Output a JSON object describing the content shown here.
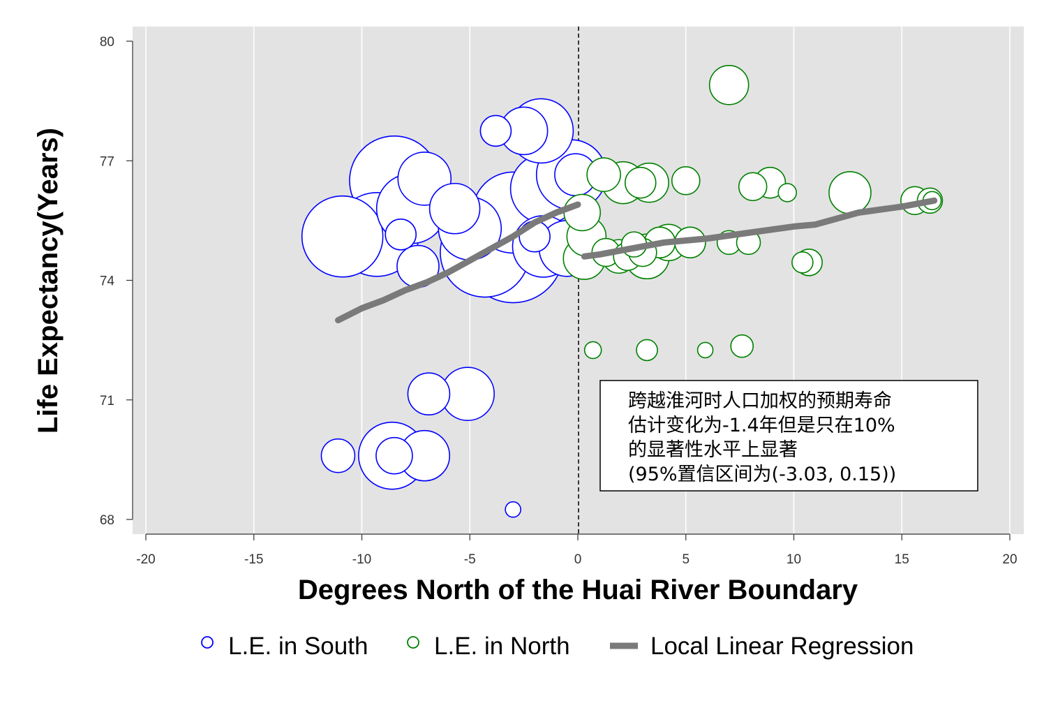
{
  "chart_data": {
    "type": "scatter",
    "xlabel": "Degrees North of the Huai River Boundary",
    "ylabel": "Life Expectancy(Years)",
    "xlim": [
      -20,
      20
    ],
    "ylim": [
      67.6,
      80.35
    ],
    "x_ticks": [
      -20,
      -15,
      -10,
      -5,
      0,
      5,
      10,
      15,
      20
    ],
    "x_tick_labels": [
      "-20",
      "-15",
      "-10",
      "-5",
      "0",
      "5",
      "10",
      "15",
      "20"
    ],
    "y_ticks": [
      68,
      71,
      74,
      77,
      80
    ],
    "y_tick_labels": [
      "68",
      "71",
      "74",
      "77",
      "80"
    ],
    "grid": "vertical",
    "plot_background": "#e3e3e3",
    "cutoff_x": 0,
    "series": [
      {
        "name": "L.E. in South",
        "marker": "hollow-circle",
        "color": "#0000ff",
        "points": [
          {
            "x": -10.9,
            "y": 75.1,
            "size": 58
          },
          {
            "x": -9.3,
            "y": 75.15,
            "size": 60
          },
          {
            "x": -8.5,
            "y": 76.5,
            "size": 64
          },
          {
            "x": -8.2,
            "y": 75.15,
            "size": 22
          },
          {
            "x": -7.7,
            "y": 75.8,
            "size": 50
          },
          {
            "x": -7.1,
            "y": 76.55,
            "size": 38
          },
          {
            "x": -7.4,
            "y": 74.35,
            "size": 30
          },
          {
            "x": -5.7,
            "y": 75.8,
            "size": 36
          },
          {
            "x": -5.0,
            "y": 75.3,
            "size": 45
          },
          {
            "x": -4.3,
            "y": 74.7,
            "size": 64
          },
          {
            "x": -3.8,
            "y": 77.75,
            "size": 22
          },
          {
            "x": -3.0,
            "y": 75.7,
            "size": 58
          },
          {
            "x": -3.0,
            "y": 74.7,
            "size": 72
          },
          {
            "x": -2.5,
            "y": 77.75,
            "size": 34
          },
          {
            "x": -1.7,
            "y": 77.75,
            "size": 46
          },
          {
            "x": -2.0,
            "y": 75.1,
            "size": 22
          },
          {
            "x": -1.6,
            "y": 74.85,
            "size": 44
          },
          {
            "x": -1.5,
            "y": 76.3,
            "size": 50
          },
          {
            "x": -0.5,
            "y": 74.8,
            "size": 40
          },
          {
            "x": -0.3,
            "y": 76.65,
            "size": 50
          },
          {
            "x": -0.1,
            "y": 76.65,
            "size": 30
          },
          {
            "x": -6.9,
            "y": 71.15,
            "size": 30
          },
          {
            "x": -5.1,
            "y": 71.15,
            "size": 38
          },
          {
            "x": -11.1,
            "y": 69.6,
            "size": 24
          },
          {
            "x": -8.6,
            "y": 69.6,
            "size": 48
          },
          {
            "x": -8.5,
            "y": 69.6,
            "size": 26
          },
          {
            "x": -7.1,
            "y": 69.6,
            "size": 36
          },
          {
            "x": -3.0,
            "y": 68.25,
            "size": 11
          }
        ]
      },
      {
        "name": "L.E. in North",
        "marker": "hollow-circle",
        "color": "#008000",
        "points": [
          {
            "x": 7.0,
            "y": 78.9,
            "size": 28
          },
          {
            "x": 1.2,
            "y": 76.65,
            "size": 24
          },
          {
            "x": 2.1,
            "y": 76.45,
            "size": 30
          },
          {
            "x": 2.9,
            "y": 76.45,
            "size": 22
          },
          {
            "x": 3.3,
            "y": 76.45,
            "size": 28
          },
          {
            "x": 5.0,
            "y": 76.5,
            "size": 20
          },
          {
            "x": 8.1,
            "y": 76.35,
            "size": 20
          },
          {
            "x": 8.9,
            "y": 76.45,
            "size": 22
          },
          {
            "x": 9.7,
            "y": 76.2,
            "size": 13
          },
          {
            "x": 12.6,
            "y": 76.2,
            "size": 30
          },
          {
            "x": 15.6,
            "y": 76.0,
            "size": 20
          },
          {
            "x": 16.3,
            "y": 76.0,
            "size": 18
          },
          {
            "x": 16.4,
            "y": 76.0,
            "size": 13
          },
          {
            "x": 0.2,
            "y": 75.7,
            "size": 26
          },
          {
            "x": 0.4,
            "y": 75.1,
            "size": 28
          },
          {
            "x": 0.3,
            "y": 74.55,
            "size": 30
          },
          {
            "x": 1.3,
            "y": 74.7,
            "size": 20
          },
          {
            "x": 1.9,
            "y": 74.6,
            "size": 24
          },
          {
            "x": 2.3,
            "y": 74.6,
            "size": 20
          },
          {
            "x": 2.6,
            "y": 74.9,
            "size": 18
          },
          {
            "x": 3.0,
            "y": 74.7,
            "size": 20
          },
          {
            "x": 3.2,
            "y": 74.6,
            "size": 32
          },
          {
            "x": 3.8,
            "y": 74.95,
            "size": 22
          },
          {
            "x": 4.2,
            "y": 74.95,
            "size": 26
          },
          {
            "x": 5.2,
            "y": 74.95,
            "size": 22
          },
          {
            "x": 7.0,
            "y": 74.95,
            "size": 17
          },
          {
            "x": 7.9,
            "y": 74.95,
            "size": 17
          },
          {
            "x": 10.4,
            "y": 74.45,
            "size": 15
          },
          {
            "x": 10.7,
            "y": 74.45,
            "size": 19
          },
          {
            "x": 0.7,
            "y": 72.25,
            "size": 12
          },
          {
            "x": 3.2,
            "y": 72.25,
            "size": 15
          },
          {
            "x": 5.9,
            "y": 72.25,
            "size": 11
          },
          {
            "x": 7.6,
            "y": 72.35,
            "size": 16
          }
        ]
      }
    ],
    "regression": {
      "name": "Local Linear Regression",
      "color": "#7a7a7a",
      "left": [
        {
          "x": -11.1,
          "y": 73.0
        },
        {
          "x": -10.0,
          "y": 73.3
        },
        {
          "x": -9.0,
          "y": 73.5
        },
        {
          "x": -8.0,
          "y": 73.75
        },
        {
          "x": -7.0,
          "y": 73.95
        },
        {
          "x": -6.0,
          "y": 74.2
        },
        {
          "x": -5.0,
          "y": 74.5
        },
        {
          "x": -4.0,
          "y": 74.8
        },
        {
          "x": -3.0,
          "y": 75.1
        },
        {
          "x": -2.0,
          "y": 75.45
        },
        {
          "x": -1.0,
          "y": 75.7
        },
        {
          "x": 0.0,
          "y": 75.9
        }
      ],
      "right": [
        {
          "x": 0.3,
          "y": 74.6
        },
        {
          "x": 1.0,
          "y": 74.65
        },
        {
          "x": 2.0,
          "y": 74.75
        },
        {
          "x": 4.0,
          "y": 74.95
        },
        {
          "x": 6.0,
          "y": 75.05
        },
        {
          "x": 8.0,
          "y": 75.2
        },
        {
          "x": 10.0,
          "y": 75.35
        },
        {
          "x": 11.0,
          "y": 75.4
        },
        {
          "x": 13.0,
          "y": 75.7
        },
        {
          "x": 15.0,
          "y": 75.85
        },
        {
          "x": 16.5,
          "y": 76.0
        }
      ]
    },
    "annotation": {
      "lines": [
        "跨越淮河时人口加权的预期寿命",
        "估计变化为-1.4年但是只在10%",
        "的显著性水平上显著",
        "(95%置信区间为(-3.03, 0.15))"
      ]
    },
    "legend": {
      "placement": "bottom",
      "items": [
        {
          "label": "L.E. in South",
          "marker": "hollow-circle",
          "color": "#0000ff"
        },
        {
          "label": "L.E. in North",
          "marker": "hollow-circle",
          "color": "#008000"
        },
        {
          "label": "Local Linear Regression",
          "marker": "thick-line",
          "color": "#7a7a7a"
        }
      ]
    }
  }
}
